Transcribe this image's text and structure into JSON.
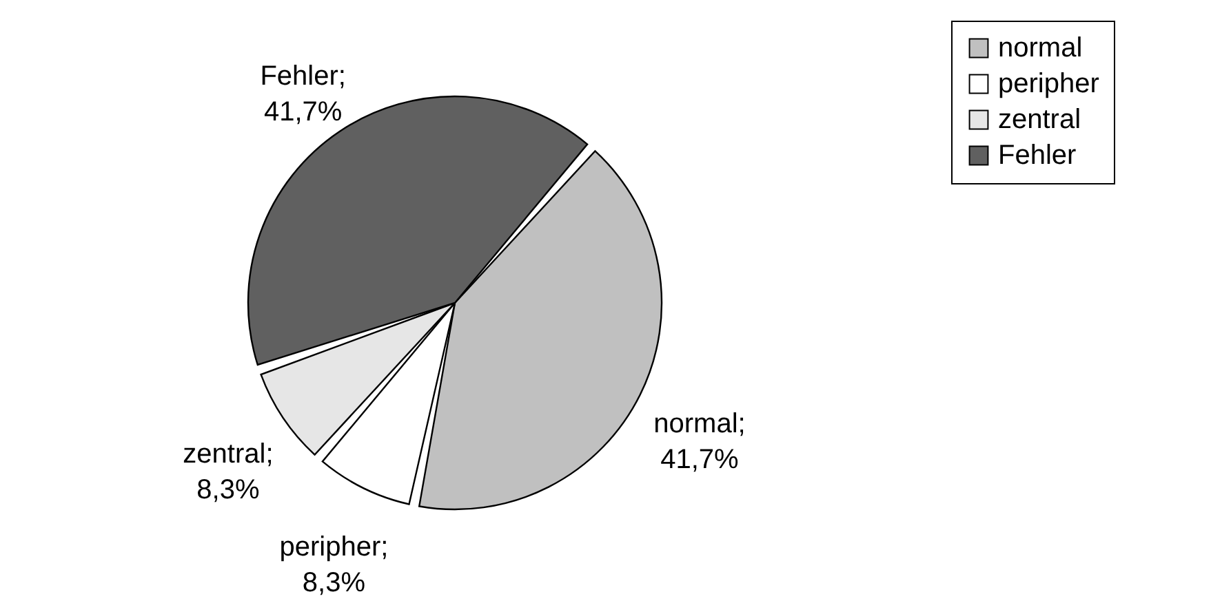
{
  "chart_data": {
    "type": "pie",
    "categories": [
      "normal",
      "peripher",
      "zentral",
      "Fehler"
    ],
    "values": [
      41.7,
      8.3,
      8.3,
      41.7
    ],
    "colors": [
      "#c0c0c0",
      "#ffffff",
      "#e6e6e6",
      "#606060"
    ],
    "value_labels": [
      "normal; 41,7%",
      "peripher; 8,3%",
      "zentral; 8,3%",
      "Fehler; 41,7%"
    ],
    "legend": "right"
  }
}
